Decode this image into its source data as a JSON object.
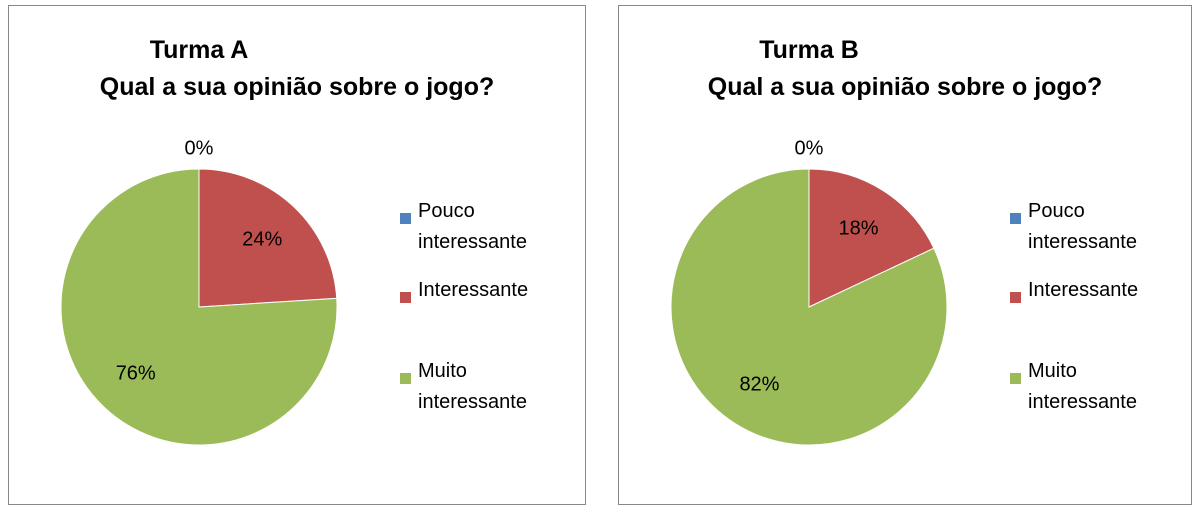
{
  "chart_data": [
    {
      "type": "pie",
      "title": "Turma A",
      "subtitle": "Qual a sua opinião sobre o jogo?",
      "categories": [
        "Pouco interessante",
        "Interessante",
        "Muito interessante"
      ],
      "values": [
        0,
        24,
        76
      ],
      "value_labels": [
        "0%",
        "24%",
        "76%"
      ],
      "colors": [
        "#4f81bd",
        "#c0504d",
        "#9bbb59"
      ],
      "legend": "right"
    },
    {
      "type": "pie",
      "title": "Turma B",
      "subtitle": "Qual a sua opinião sobre o jogo?",
      "categories": [
        "Pouco interessante",
        "Interessante",
        "Muito interessante"
      ],
      "values": [
        0,
        18,
        82
      ],
      "value_labels": [
        "0%",
        "18%",
        "82%"
      ],
      "colors": [
        "#4f81bd",
        "#c0504d",
        "#9bbb59"
      ],
      "legend": "right"
    }
  ]
}
